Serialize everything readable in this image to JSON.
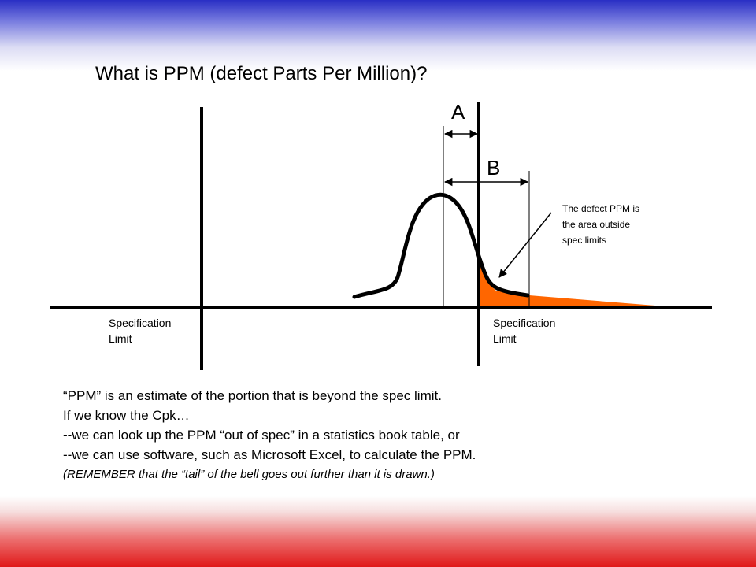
{
  "slide": {
    "title": "What is PPM (defect Parts Per Million)?",
    "label_a": "A",
    "label_b": "B",
    "spec_limit_left": [
      "Specification",
      "Limit"
    ],
    "spec_limit_right": [
      "Specification",
      "Limit"
    ],
    "note": [
      "The defect PPM is",
      "the area outside",
      "spec limits"
    ],
    "body_lines": [
      "“PPM” is an estimate of the portion that is beyond the spec limit.",
      "If we know the Cpk…",
      "--we can look up the PPM “out of spec” in a statistics book table, or",
      "--we can use software, such as Microsoft Excel, to calculate the PPM.",
      "(REMEMBER that the “tail” of the bell goes out further than it is drawn.)"
    ]
  },
  "colors": {
    "tail_fill": "#ff6600",
    "line": "#000000"
  }
}
